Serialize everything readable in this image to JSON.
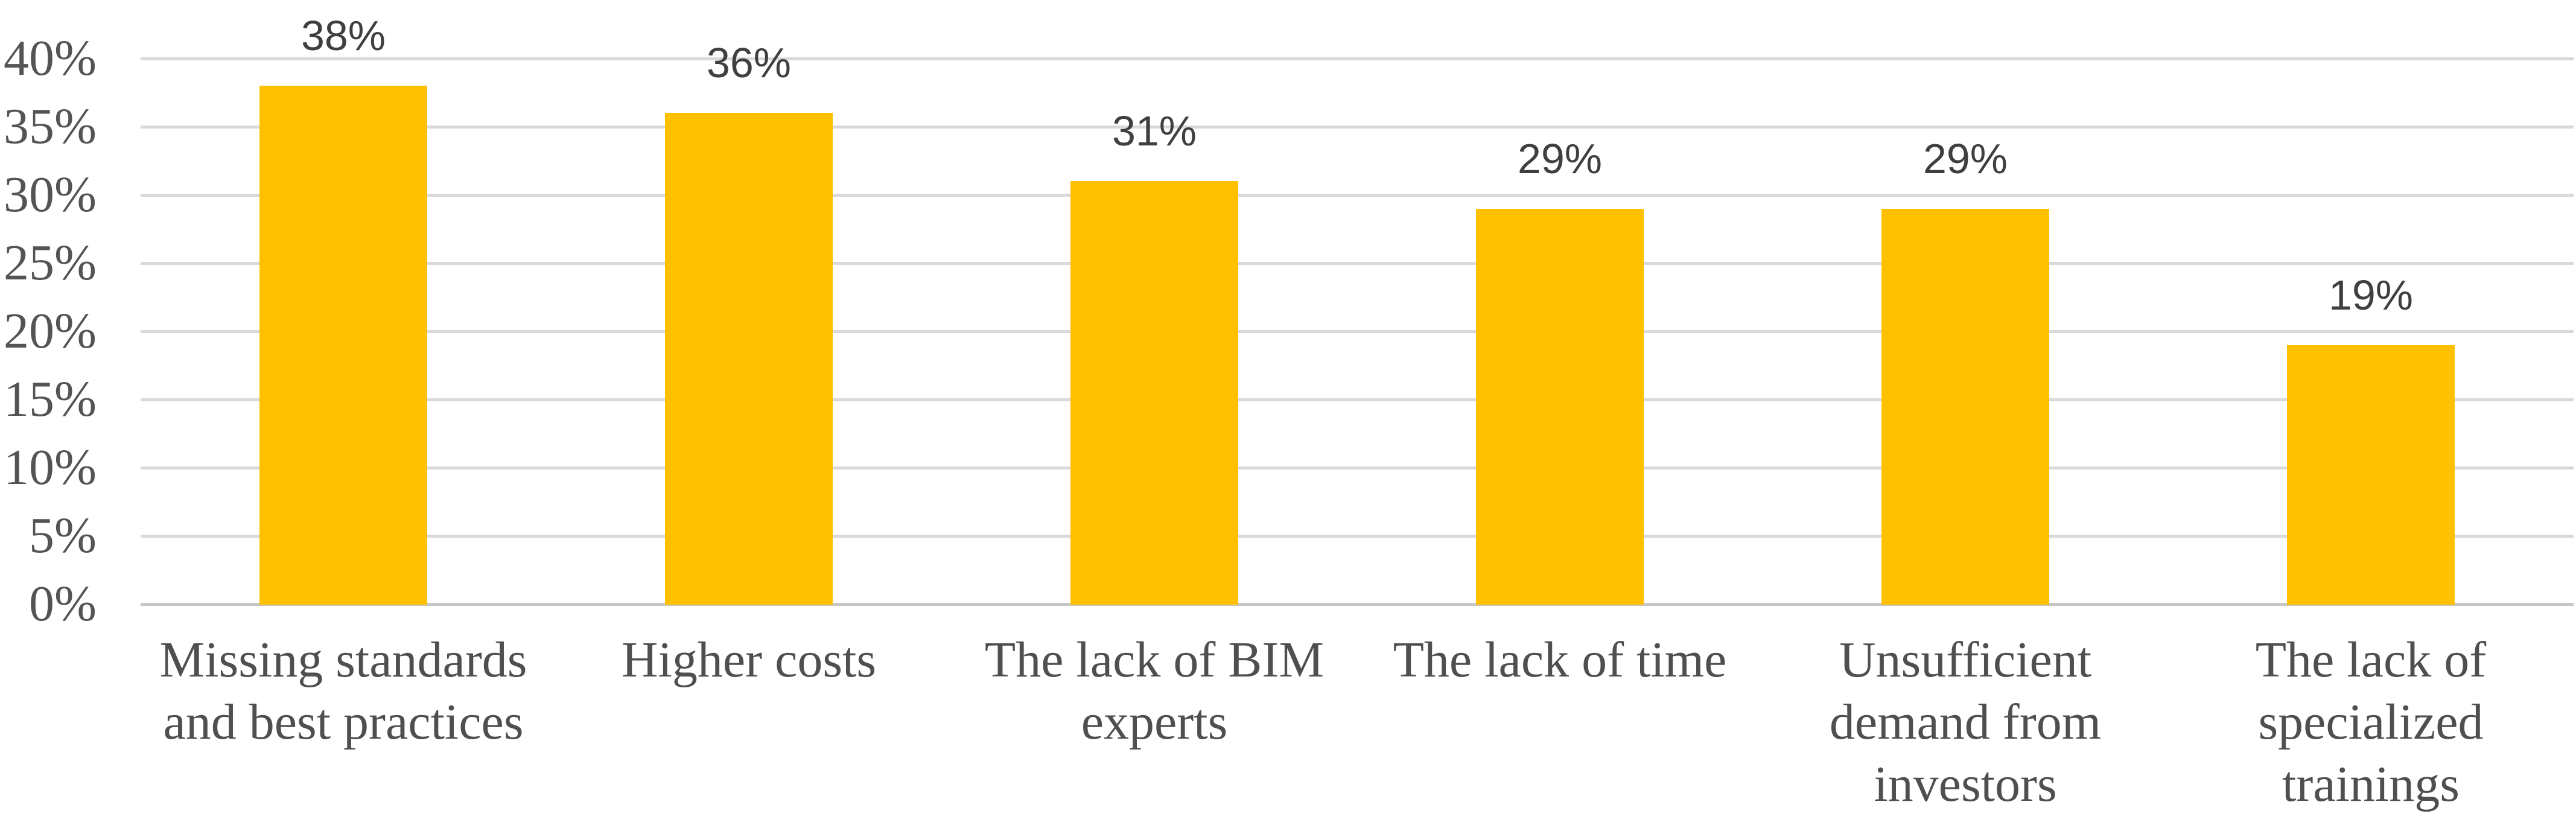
{
  "chart_data": {
    "type": "bar",
    "title": "",
    "xlabel": "",
    "ylabel": "",
    "categories": [
      "Missing standards\nand best practices",
      "Higher costs",
      "The lack of BIM\nexperts",
      "The lack of time",
      "Unsufficient\ndemand from\ninvestors",
      "The lack of\nspecialized\ntrainings"
    ],
    "values": [
      38,
      36,
      31,
      29,
      29,
      19
    ],
    "value_labels": [
      "38%",
      "36%",
      "31%",
      "29%",
      "29%",
      "19%"
    ],
    "ylim": [
      0,
      40
    ],
    "y_tick_values": [
      0,
      5,
      10,
      15,
      20,
      25,
      30,
      35,
      40
    ],
    "y_tick_labels": [
      "0%",
      "5%",
      "10%",
      "15%",
      "20%",
      "25%",
      "30%",
      "35%",
      "40%"
    ],
    "grid": "horizontal",
    "legend": "none",
    "colors": {
      "bar": "#FFC000",
      "gridline": "#D9D9D9",
      "axis_line": "#C6C6C6",
      "tick_label": "#545454",
      "category_label": "#4F4F4F",
      "value_label": "#3F3F3F",
      "background": "#FFFFFF"
    }
  }
}
